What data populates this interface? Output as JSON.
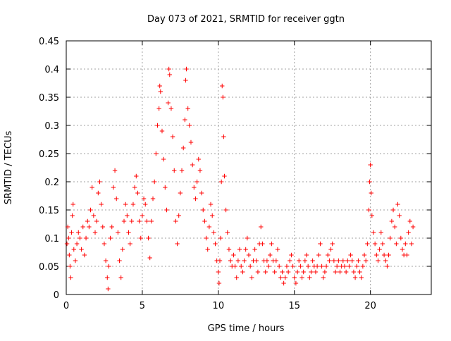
{
  "chart_data": {
    "type": "scatter",
    "title": "Day 073 of 2021, SRMTID for receiver ggtn",
    "xlabel": "GPS time / hours",
    "ylabel": "SRMTID / TECUs",
    "xlim": [
      0,
      24
    ],
    "ylim": [
      0,
      0.45
    ],
    "x_ticks": [
      0,
      5,
      10,
      15,
      20
    ],
    "x_tick_labels": [
      "0",
      "5",
      "10",
      "15",
      "20"
    ],
    "y_ticks": [
      0,
      0.05,
      0.1,
      0.15,
      0.2,
      0.25,
      0.3,
      0.35,
      0.4,
      0.45
    ],
    "y_tick_labels": [
      "0",
      "0.05",
      "0.1",
      "0.15",
      "0.2",
      "0.25",
      "0.3",
      "0.35",
      "0.4",
      "0.45"
    ],
    "grid": true,
    "marker": "+",
    "color": "#ff0000",
    "series": [
      {
        "name": "SRMTID",
        "points": [
          [
            0.05,
            0.09
          ],
          [
            0.1,
            0.12
          ],
          [
            0.15,
            0.1
          ],
          [
            0.2,
            0.07
          ],
          [
            0.25,
            0.05
          ],
          [
            0.3,
            0.03
          ],
          [
            0.35,
            0.11
          ],
          [
            0.4,
            0.14
          ],
          [
            0.45,
            0.16
          ],
          [
            0.5,
            0.08
          ],
          [
            0.6,
            0.06
          ],
          [
            0.7,
            0.09
          ],
          [
            0.8,
            0.11
          ],
          [
            0.9,
            0.1
          ],
          [
            1.0,
            0.08
          ],
          [
            1.1,
            0.12
          ],
          [
            1.2,
            0.07
          ],
          [
            1.3,
            0.1
          ],
          [
            1.4,
            0.13
          ],
          [
            1.5,
            0.12
          ],
          [
            1.6,
            0.15
          ],
          [
            1.7,
            0.19
          ],
          [
            1.8,
            0.14
          ],
          [
            1.9,
            0.11
          ],
          [
            2.0,
            0.13
          ],
          [
            2.1,
            0.18
          ],
          [
            2.2,
            0.2
          ],
          [
            2.3,
            0.16
          ],
          [
            2.4,
            0.12
          ],
          [
            2.5,
            0.09
          ],
          [
            2.6,
            0.06
          ],
          [
            2.7,
            0.03
          ],
          [
            2.75,
            0.01
          ],
          [
            2.8,
            0.05
          ],
          [
            2.9,
            0.1
          ],
          [
            3.0,
            0.12
          ],
          [
            3.1,
            0.19
          ],
          [
            3.2,
            0.22
          ],
          [
            3.3,
            0.17
          ],
          [
            3.4,
            0.11
          ],
          [
            3.5,
            0.06
          ],
          [
            3.6,
            0.03
          ],
          [
            3.7,
            0.08
          ],
          [
            3.8,
            0.13
          ],
          [
            3.9,
            0.16
          ],
          [
            4.0,
            0.14
          ],
          [
            4.1,
            0.11
          ],
          [
            4.2,
            0.09
          ],
          [
            4.3,
            0.13
          ],
          [
            4.4,
            0.16
          ],
          [
            4.5,
            0.19
          ],
          [
            4.6,
            0.21
          ],
          [
            4.7,
            0.18
          ],
          [
            4.8,
            0.13
          ],
          [
            4.9,
            0.1
          ],
          [
            5.0,
            0.14
          ],
          [
            5.1,
            0.17
          ],
          [
            5.2,
            0.16
          ],
          [
            5.3,
            0.13
          ],
          [
            5.4,
            0.1
          ],
          [
            5.5,
            0.065
          ],
          [
            5.6,
            0.13
          ],
          [
            5.7,
            0.17
          ],
          [
            5.8,
            0.2
          ],
          [
            5.9,
            0.25
          ],
          [
            6.0,
            0.3
          ],
          [
            6.1,
            0.33
          ],
          [
            6.15,
            0.37
          ],
          [
            6.2,
            0.36
          ],
          [
            6.3,
            0.29
          ],
          [
            6.4,
            0.24
          ],
          [
            6.5,
            0.19
          ],
          [
            6.6,
            0.15
          ],
          [
            6.7,
            0.34
          ],
          [
            6.75,
            0.4
          ],
          [
            6.8,
            0.39
          ],
          [
            6.9,
            0.33
          ],
          [
            7.0,
            0.28
          ],
          [
            7.1,
            0.22
          ],
          [
            7.2,
            0.13
          ],
          [
            7.3,
            0.09
          ],
          [
            7.4,
            0.14
          ],
          [
            7.5,
            0.18
          ],
          [
            7.6,
            0.22
          ],
          [
            7.7,
            0.26
          ],
          [
            7.8,
            0.31
          ],
          [
            7.85,
            0.38
          ],
          [
            7.9,
            0.4
          ],
          [
            8.0,
            0.33
          ],
          [
            8.1,
            0.3
          ],
          [
            8.2,
            0.27
          ],
          [
            8.3,
            0.23
          ],
          [
            8.4,
            0.19
          ],
          [
            8.5,
            0.17
          ],
          [
            8.6,
            0.2
          ],
          [
            8.7,
            0.24
          ],
          [
            8.8,
            0.22
          ],
          [
            8.9,
            0.18
          ],
          [
            9.0,
            0.15
          ],
          [
            9.1,
            0.13
          ],
          [
            9.2,
            0.1
          ],
          [
            9.3,
            0.08
          ],
          [
            9.4,
            0.12
          ],
          [
            9.5,
            0.16
          ],
          [
            9.6,
            0.14
          ],
          [
            9.7,
            0.11
          ],
          [
            9.8,
            0.09
          ],
          [
            9.9,
            0.06
          ],
          [
            10.0,
            0.04
          ],
          [
            10.05,
            0.02
          ],
          [
            10.1,
            0.06
          ],
          [
            10.15,
            0.1
          ],
          [
            10.2,
            0.2
          ],
          [
            10.25,
            0.37
          ],
          [
            10.3,
            0.35
          ],
          [
            10.35,
            0.28
          ],
          [
            10.4,
            0.21
          ],
          [
            10.5,
            0.15
          ],
          [
            10.6,
            0.11
          ],
          [
            10.7,
            0.08
          ],
          [
            10.8,
            0.06
          ],
          [
            10.9,
            0.05
          ],
          [
            11.0,
            0.07
          ],
          [
            11.1,
            0.05
          ],
          [
            11.2,
            0.03
          ],
          [
            11.3,
            0.06
          ],
          [
            11.4,
            0.08
          ],
          [
            11.5,
            0.05
          ],
          [
            11.6,
            0.04
          ],
          [
            11.7,
            0.06
          ],
          [
            11.8,
            0.08
          ],
          [
            11.9,
            0.1
          ],
          [
            12.0,
            0.07
          ],
          [
            12.1,
            0.05
          ],
          [
            12.2,
            0.03
          ],
          [
            12.3,
            0.06
          ],
          [
            12.4,
            0.08
          ],
          [
            12.5,
            0.06
          ],
          [
            12.6,
            0.04
          ],
          [
            12.7,
            0.09
          ],
          [
            12.8,
            0.12
          ],
          [
            12.9,
            0.09
          ],
          [
            13.0,
            0.06
          ],
          [
            13.1,
            0.04
          ],
          [
            13.2,
            0.06
          ],
          [
            13.3,
            0.05
          ],
          [
            13.4,
            0.07
          ],
          [
            13.5,
            0.09
          ],
          [
            13.6,
            0.06
          ],
          [
            13.7,
            0.04
          ],
          [
            13.8,
            0.06
          ],
          [
            13.9,
            0.08
          ],
          [
            14.0,
            0.05
          ],
          [
            14.1,
            0.03
          ],
          [
            14.2,
            0.04
          ],
          [
            14.3,
            0.02
          ],
          [
            14.4,
            0.03
          ],
          [
            14.5,
            0.05
          ],
          [
            14.6,
            0.04
          ],
          [
            14.7,
            0.06
          ],
          [
            14.8,
            0.07
          ],
          [
            14.9,
            0.05
          ],
          [
            15.0,
            0.03
          ],
          [
            15.1,
            0.02
          ],
          [
            15.2,
            0.04
          ],
          [
            15.3,
            0.06
          ],
          [
            15.4,
            0.05
          ],
          [
            15.5,
            0.03
          ],
          [
            15.6,
            0.04
          ],
          [
            15.7,
            0.06
          ],
          [
            15.8,
            0.07
          ],
          [
            15.9,
            0.05
          ],
          [
            16.0,
            0.03
          ],
          [
            16.1,
            0.04
          ],
          [
            16.2,
            0.06
          ],
          [
            16.3,
            0.05
          ],
          [
            16.4,
            0.04
          ],
          [
            16.5,
            0.05
          ],
          [
            16.6,
            0.07
          ],
          [
            16.7,
            0.09
          ],
          [
            16.8,
            0.05
          ],
          [
            16.9,
            0.03
          ],
          [
            17.0,
            0.04
          ],
          [
            17.1,
            0.05
          ],
          [
            17.2,
            0.07
          ],
          [
            17.3,
            0.06
          ],
          [
            17.4,
            0.08
          ],
          [
            17.5,
            0.09
          ],
          [
            17.6,
            0.06
          ],
          [
            17.7,
            0.04
          ],
          [
            17.8,
            0.05
          ],
          [
            17.9,
            0.06
          ],
          [
            18.0,
            0.04
          ],
          [
            18.1,
            0.05
          ],
          [
            18.2,
            0.06
          ],
          [
            18.3,
            0.05
          ],
          [
            18.4,
            0.04
          ],
          [
            18.5,
            0.06
          ],
          [
            18.6,
            0.05
          ],
          [
            18.7,
            0.07
          ],
          [
            18.8,
            0.06
          ],
          [
            18.9,
            0.04
          ],
          [
            19.0,
            0.03
          ],
          [
            19.1,
            0.05
          ],
          [
            19.2,
            0.06
          ],
          [
            19.3,
            0.04
          ],
          [
            19.4,
            0.03
          ],
          [
            19.5,
            0.05
          ],
          [
            19.6,
            0.07
          ],
          [
            19.7,
            0.06
          ],
          [
            19.8,
            0.09
          ],
          [
            19.9,
            0.15
          ],
          [
            19.95,
            0.2
          ],
          [
            20.0,
            0.23
          ],
          [
            20.05,
            0.18
          ],
          [
            20.1,
            0.14
          ],
          [
            20.2,
            0.11
          ],
          [
            20.3,
            0.09
          ],
          [
            20.4,
            0.07
          ],
          [
            20.5,
            0.06
          ],
          [
            20.6,
            0.08
          ],
          [
            20.7,
            0.11
          ],
          [
            20.8,
            0.09
          ],
          [
            20.9,
            0.07
          ],
          [
            21.0,
            0.06
          ],
          [
            21.1,
            0.05
          ],
          [
            21.2,
            0.07
          ],
          [
            21.3,
            0.1
          ],
          [
            21.4,
            0.13
          ],
          [
            21.5,
            0.15
          ],
          [
            21.6,
            0.12
          ],
          [
            21.7,
            0.09
          ],
          [
            21.8,
            0.16
          ],
          [
            21.9,
            0.14
          ],
          [
            22.0,
            0.1
          ],
          [
            22.1,
            0.08
          ],
          [
            22.2,
            0.07
          ],
          [
            22.3,
            0.09
          ],
          [
            22.4,
            0.07
          ],
          [
            22.5,
            0.11
          ],
          [
            22.6,
            0.13
          ],
          [
            22.7,
            0.09
          ],
          [
            22.8,
            0.12
          ]
        ]
      }
    ]
  }
}
